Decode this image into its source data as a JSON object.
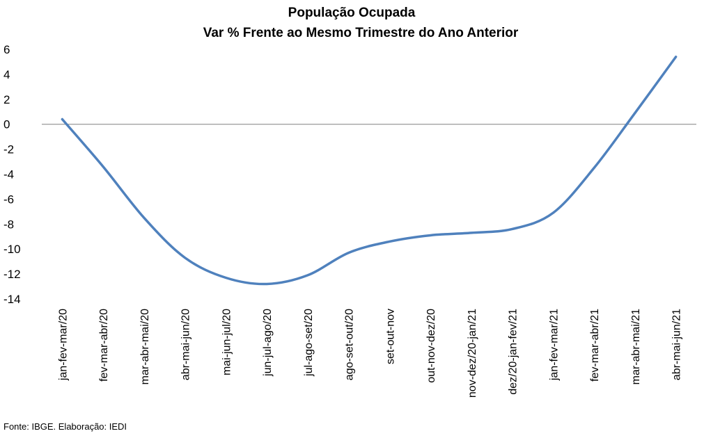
{
  "chart_data": {
    "type": "line",
    "title": [
      "População Ocupada",
      "Var % Frente ao Mesmo Trimestre do Ano Anterior"
    ],
    "xlabel": "",
    "ylabel": "",
    "categories": [
      "jan-fev-mar/20",
      "fev-mar-abr/20",
      "mar-abr-mai/20",
      "abr-mai-jun/20",
      "mai-jun-jul/20",
      "jun-jul-ago/20",
      "jul-ago-set/20",
      "ago-set-out/20",
      "set-out-nov",
      "out-nov-dez/20",
      "nov-dez/20-jan/21",
      "dez/20-jan-fev/21",
      "jan-fev-mar/21",
      "fev-mar-abr/21",
      "mar-abr-mai/21",
      "abr-mai-jun/21"
    ],
    "series": [
      {
        "name": "",
        "color": "#4F81BD",
        "values": [
          0.4,
          -3.4,
          -7.5,
          -10.7,
          -12.3,
          -12.8,
          -12.1,
          -10.3,
          -9.4,
          -8.9,
          -8.7,
          -8.4,
          -7.1,
          -3.5,
          0.9,
          5.4
        ]
      }
    ],
    "ylim": [
      -14,
      6
    ],
    "yticks": [
      6,
      4,
      2,
      0,
      -2,
      -4,
      -6,
      -8,
      -10,
      -12,
      -14
    ],
    "grid": false,
    "legend": "none",
    "zero_line": true,
    "source": "Fonte: IBGE. Elaboração: IEDI"
  }
}
